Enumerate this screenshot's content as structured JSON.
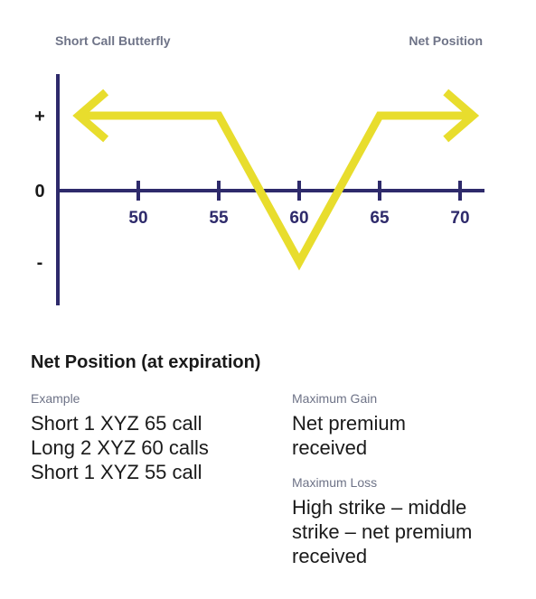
{
  "header": {
    "left_title": "Short Call Butterfly",
    "right_title": "Net Position"
  },
  "chart_data": {
    "type": "line",
    "title": "Short Call Butterfly",
    "y_axis_title": "Net Position",
    "x_ticks": [
      50,
      55,
      60,
      65,
      70
    ],
    "y_ticks": [
      "+",
      "0",
      "-"
    ],
    "xlim": [
      45,
      71.5
    ],
    "series": [
      {
        "x": [
          46.3,
          55,
          60,
          65,
          70.8
        ],
        "y": [
          1,
          1,
          -1,
          1,
          1
        ],
        "arrows": "both"
      }
    ],
    "colors": {
      "axis": "#2e2a6b",
      "line": "#e8dd2d"
    }
  },
  "summary": {
    "title": "Net Position (at expiration)",
    "example_label": "Example",
    "example_lines": [
      "Short 1 XYZ 65 call",
      "Long 2 XYZ 60 calls",
      "Short 1 XYZ 55 call"
    ],
    "max_gain_label": "Maximum Gain",
    "max_gain_lines": [
      "Net premium",
      "received"
    ],
    "max_loss_label": "Maximum Loss",
    "max_loss_lines": [
      "High strike – middle",
      "strike – net premium",
      "received"
    ]
  }
}
